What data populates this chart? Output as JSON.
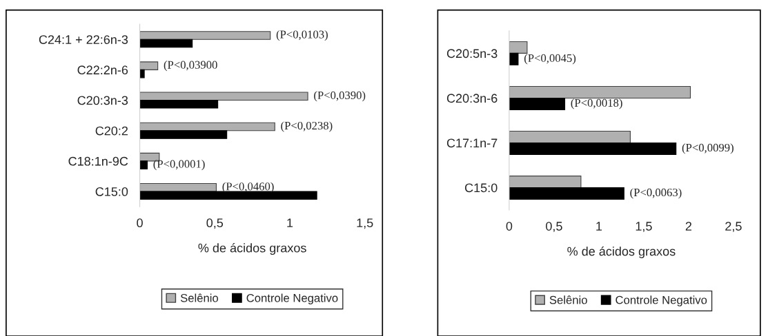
{
  "chart_data": [
    {
      "type": "bar",
      "orientation": "horizontal",
      "xlabel": "% de ácidos graxos",
      "categories": [
        "C24:1 + 22:6n-3",
        "C22:2n-6",
        "C20:3n-3",
        "C20:2",
        "C18:1n-9C",
        "C15:0"
      ],
      "series": [
        {
          "name": "Selênio",
          "color": "#b0b0b0",
          "values": [
            0.87,
            0.12,
            1.12,
            0.9,
            0.13,
            0.51
          ]
        },
        {
          "name": "Controle Negativo",
          "color": "#000000",
          "values": [
            0.35,
            0.03,
            0.52,
            0.58,
            0.05,
            1.18
          ]
        }
      ],
      "xlim": [
        0,
        1.5
      ],
      "xticks": [
        0,
        {
          "value": 0.5,
          "label": "0,5"
        },
        1,
        {
          "value": 1.5,
          "label": "1,5"
        }
      ],
      "grid": false,
      "legend": "bottom",
      "annotations": [
        {
          "text": "(P<0,0103)",
          "x": 0.87,
          "y": "C24:1 + 22:6n-3"
        },
        {
          "text": "(P<0,03900",
          "x": 0.12,
          "y": "C22:2n-6"
        },
        {
          "text": "(P<0,0390)",
          "x": 1.12,
          "y": "C20:3n-3"
        },
        {
          "text": "(P<0,0238)",
          "x": 0.9,
          "y": "C20:2"
        },
        {
          "text": "(P<0,0001)",
          "x": 0.05,
          "y": "C18:1n-9C"
        },
        {
          "text": "(P<0,0460)",
          "x": 0.51,
          "y": "C15:0"
        }
      ]
    },
    {
      "type": "bar",
      "orientation": "horizontal",
      "xlabel": "% de ácidos graxos",
      "categories": [
        "C20:5n-3",
        "C20:3n-6",
        "C17:1n-7",
        "C15:0"
      ],
      "series": [
        {
          "name": "Selênio",
          "color": "#b0b0b0",
          "values": [
            0.2,
            2.02,
            1.35,
            0.8
          ]
        },
        {
          "name": "Controle Negativo",
          "color": "#000000",
          "values": [
            0.1,
            0.62,
            1.86,
            1.28
          ]
        }
      ],
      "xlim": [
        0,
        2.5
      ],
      "xticks": [
        0,
        {
          "value": 0.5,
          "label": "0,5"
        },
        1,
        {
          "value": 1.5,
          "label": "1,5"
        },
        2,
        {
          "value": 2.5,
          "label": "2,5"
        }
      ],
      "grid": false,
      "legend": "bottom",
      "annotations": [
        {
          "text": "(P<0,0045)",
          "x": 0.1,
          "y": "C20:5n-3"
        },
        {
          "text": "(P<0,0018)",
          "x": 0.62,
          "y": "C20:3n-6"
        },
        {
          "text": "(P<0,0099)",
          "x": 1.86,
          "y": "C17:1n-7"
        },
        {
          "text": "(P<0,0063)",
          "x": 1.28,
          "y": "C15:0"
        }
      ]
    }
  ]
}
